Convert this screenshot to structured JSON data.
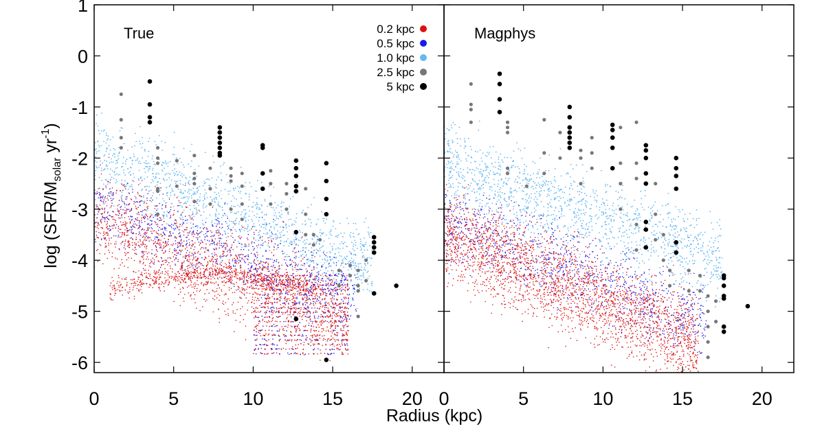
{
  "chart_data": {
    "type": "scatter",
    "ylabel": {
      "prefix": "log (SFR/M",
      "sub": "solar",
      "mid": " yr",
      "sup": "-1",
      "suffix": ")"
    },
    "xlabel": "Radius (kpc)",
    "xlim": [
      0,
      22
    ],
    "ylim": [
      -6.2,
      1
    ],
    "xticks": [
      0,
      5,
      10,
      15,
      20
    ],
    "yticks": [
      1,
      0,
      -1,
      -2,
      -3,
      -4,
      -5,
      -6
    ],
    "ytick_labels": [
      "1",
      "0",
      "-1",
      "-2",
      "-3",
      "-4",
      "-5",
      "-6"
    ],
    "xtick_labels": [
      "0",
      "5",
      "10",
      "15",
      "20"
    ],
    "legend": [
      {
        "label": "0.2 kpc",
        "color": "#dd1111"
      },
      {
        "label": "0.5 kpc",
        "color": "#1a1aee"
      },
      {
        "label": "1.0 kpc",
        "color": "#66b8f2"
      },
      {
        "label": "2.5 kpc",
        "color": "#777777"
      },
      {
        "label": "5 kpc",
        "color": "#000000"
      }
    ],
    "panels": [
      {
        "title": "True",
        "black_points": [
          [
            3.5,
            -0.5
          ],
          [
            3.5,
            -0.95
          ],
          [
            3.5,
            -1.2
          ],
          [
            3.5,
            -1.3
          ],
          [
            7.9,
            -1.4
          ],
          [
            7.9,
            -1.5
          ],
          [
            7.9,
            -1.6
          ],
          [
            7.9,
            -1.7
          ],
          [
            7.9,
            -1.8
          ],
          [
            7.9,
            -1.9
          ],
          [
            7.9,
            -1.95
          ],
          [
            10.6,
            -1.75
          ],
          [
            10.6,
            -1.8
          ],
          [
            10.6,
            -2.3
          ],
          [
            10.6,
            -2.6
          ],
          [
            12.7,
            -2.05
          ],
          [
            12.7,
            -2.2
          ],
          [
            12.7,
            -2.35
          ],
          [
            12.7,
            -2.55
          ],
          [
            12.7,
            -2.65
          ],
          [
            12.7,
            -3.45
          ],
          [
            14.6,
            -2.1
          ],
          [
            14.6,
            -2.45
          ],
          [
            14.6,
            -2.8
          ],
          [
            14.6,
            -3.1
          ],
          [
            17.6,
            -3.55
          ],
          [
            17.6,
            -3.65
          ],
          [
            17.6,
            -3.75
          ],
          [
            17.6,
            -3.85
          ],
          [
            17.6,
            -4.65
          ],
          [
            19.0,
            -4.5
          ],
          [
            12.7,
            -5.15
          ],
          [
            14.6,
            -5.95
          ]
        ],
        "gray_points": [
          [
            1.7,
            -0.75
          ],
          [
            1.7,
            -1.25
          ],
          [
            1.7,
            -1.6
          ],
          [
            1.7,
            -1.8
          ],
          [
            4.0,
            -1.8
          ],
          [
            4.0,
            -2.0
          ],
          [
            4.0,
            -2.1
          ],
          [
            4.0,
            -2.6
          ],
          [
            4.0,
            -2.65
          ],
          [
            4.0,
            -3.1
          ],
          [
            5.2,
            -2.05
          ],
          [
            5.2,
            -2.55
          ],
          [
            6.3,
            -1.95
          ],
          [
            6.3,
            -2.3
          ],
          [
            6.3,
            -2.4
          ],
          [
            6.3,
            -2.5
          ],
          [
            6.3,
            -2.85
          ],
          [
            7.3,
            -2.2
          ],
          [
            7.3,
            -2.6
          ],
          [
            7.3,
            -2.9
          ],
          [
            8.6,
            -2.2
          ],
          [
            8.6,
            -2.35
          ],
          [
            8.6,
            -2.45
          ],
          [
            8.6,
            -3.0
          ],
          [
            9.3,
            -2.3
          ],
          [
            9.3,
            -2.55
          ],
          [
            9.3,
            -2.9
          ],
          [
            9.3,
            -3.2
          ],
          [
            11.1,
            -2.25
          ],
          [
            11.1,
            -2.5
          ],
          [
            11.1,
            -2.9
          ],
          [
            12.1,
            -2.5
          ],
          [
            12.1,
            -2.7
          ],
          [
            12.1,
            -3.0
          ],
          [
            13.3,
            -2.6
          ],
          [
            13.3,
            -3.1
          ],
          [
            13.3,
            -3.5
          ],
          [
            13.8,
            -3.5
          ],
          [
            13.8,
            -3.7
          ],
          [
            14.2,
            -3.6
          ],
          [
            15.4,
            -4.2
          ],
          [
            15.4,
            -4.5
          ],
          [
            16.1,
            -4.1
          ],
          [
            16.1,
            -4.3
          ],
          [
            16.6,
            -4.2
          ],
          [
            16.6,
            -4.5
          ],
          [
            16.6,
            -4.6
          ],
          [
            16.6,
            -5.1
          ],
          [
            17.1,
            -4.0
          ],
          [
            17.1,
            -4.4
          ]
        ]
      },
      {
        "title": "Magphys",
        "black_points": [
          [
            3.5,
            -0.35
          ],
          [
            3.5,
            -0.55
          ],
          [
            3.5,
            -0.85
          ],
          [
            3.5,
            -1.1
          ],
          [
            7.9,
            -1.0
          ],
          [
            7.9,
            -1.2
          ],
          [
            7.9,
            -1.4
          ],
          [
            7.9,
            -1.5
          ],
          [
            7.9,
            -1.6
          ],
          [
            7.9,
            -1.7
          ],
          [
            7.9,
            -1.8
          ],
          [
            10.6,
            -1.35
          ],
          [
            10.6,
            -1.45
          ],
          [
            10.6,
            -1.6
          ],
          [
            10.6,
            -1.8
          ],
          [
            10.6,
            -2.2
          ],
          [
            12.7,
            -1.75
          ],
          [
            12.7,
            -1.85
          ],
          [
            12.7,
            -2.0
          ],
          [
            12.7,
            -2.3
          ],
          [
            12.7,
            -2.5
          ],
          [
            12.7,
            -3.25
          ],
          [
            12.7,
            -3.4
          ],
          [
            12.7,
            -3.75
          ],
          [
            14.6,
            -2.0
          ],
          [
            14.6,
            -2.2
          ],
          [
            14.6,
            -2.35
          ],
          [
            14.6,
            -2.6
          ],
          [
            14.6,
            -3.65
          ],
          [
            14.6,
            -3.85
          ],
          [
            17.6,
            -4.3
          ],
          [
            17.6,
            -4.35
          ],
          [
            17.6,
            -4.5
          ],
          [
            17.6,
            -4.7
          ],
          [
            17.6,
            -4.75
          ],
          [
            17.6,
            -5.3
          ],
          [
            17.6,
            -5.4
          ],
          [
            19.1,
            -4.9
          ]
        ],
        "gray_points": [
          [
            1.7,
            -0.55
          ],
          [
            1.7,
            -0.95
          ],
          [
            1.7,
            -1.05
          ],
          [
            1.7,
            -1.3
          ],
          [
            4.0,
            -1.3
          ],
          [
            4.0,
            -1.4
          ],
          [
            4.0,
            -1.5
          ],
          [
            4.0,
            -2.2
          ],
          [
            4.0,
            -2.3
          ],
          [
            5.2,
            -2.55
          ],
          [
            6.3,
            -1.25
          ],
          [
            6.3,
            -1.9
          ],
          [
            6.3,
            -2.3
          ],
          [
            7.3,
            -1.5
          ],
          [
            7.3,
            -2.0
          ],
          [
            8.6,
            -1.85
          ],
          [
            8.6,
            -2.0
          ],
          [
            8.6,
            -2.5
          ],
          [
            9.3,
            -1.6
          ],
          [
            9.3,
            -1.9
          ],
          [
            9.3,
            -2.2
          ],
          [
            11.1,
            -1.4
          ],
          [
            11.1,
            -2.1
          ],
          [
            11.1,
            -2.5
          ],
          [
            11.1,
            -3.0
          ],
          [
            12.1,
            -1.3
          ],
          [
            12.1,
            -2.1
          ],
          [
            12.1,
            -2.4
          ],
          [
            12.1,
            -3.3
          ],
          [
            12.1,
            -3.8
          ],
          [
            13.3,
            -2.5
          ],
          [
            13.3,
            -3.1
          ],
          [
            13.3,
            -3.6
          ],
          [
            13.8,
            -3.5
          ],
          [
            13.8,
            -4.0
          ],
          [
            14.2,
            -4.2
          ],
          [
            14.2,
            -4.5
          ],
          [
            15.4,
            -4.2
          ],
          [
            15.4,
            -4.6
          ],
          [
            16.1,
            -4.3
          ],
          [
            16.1,
            -4.6
          ],
          [
            16.6,
            -4.7
          ],
          [
            16.6,
            -5.0
          ],
          [
            16.6,
            -5.3
          ],
          [
            16.6,
            -5.6
          ],
          [
            16.6,
            -5.9
          ],
          [
            17.1,
            -4.8
          ],
          [
            17.1,
            -5.2
          ]
        ]
      }
    ]
  }
}
